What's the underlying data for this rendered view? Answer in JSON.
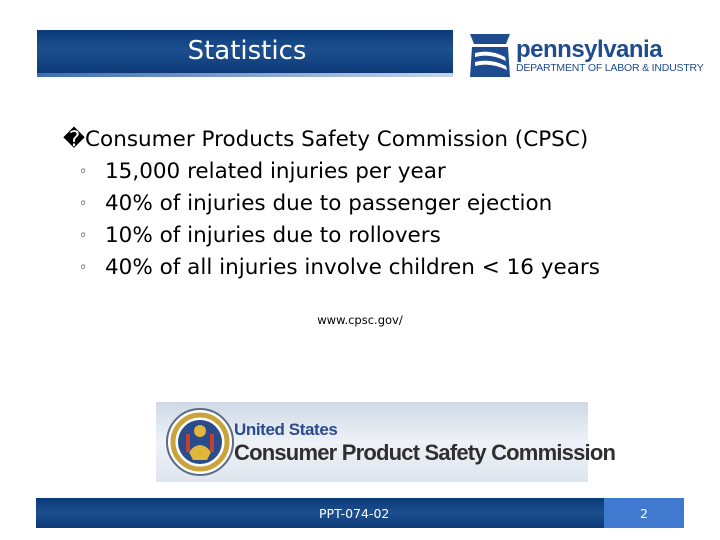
{
  "slide": {
    "title": "Statistics",
    "main_bullet_marker": "�",
    "main_bullet": "Consumer Products Safety Commission (CPSC)",
    "sub_bullet_marker": "◦",
    "sub_bullets": [
      "15,000 related injuries per year",
      "40% of injuries due to passenger ejection",
      "10% of injuries due to rollovers",
      "40% of all injuries involve children < 16 years"
    ],
    "source": "www.cpsc.gov/"
  },
  "header_logo": {
    "name": "pennsylvania",
    "department": "DEPARTMENT OF LABOR & INDUSTRY",
    "icon": "keystone-logo-icon",
    "color": "#1f4c8f"
  },
  "cpsc_logo": {
    "line1": "United States",
    "line2": "Consumer Product Safety Commission",
    "icon": "cpsc-seal-icon"
  },
  "footer": {
    "code": "PPT-074-02",
    "page": "2",
    "bar_color": "#0c3a78",
    "page_color": "#3f7ad0"
  }
}
